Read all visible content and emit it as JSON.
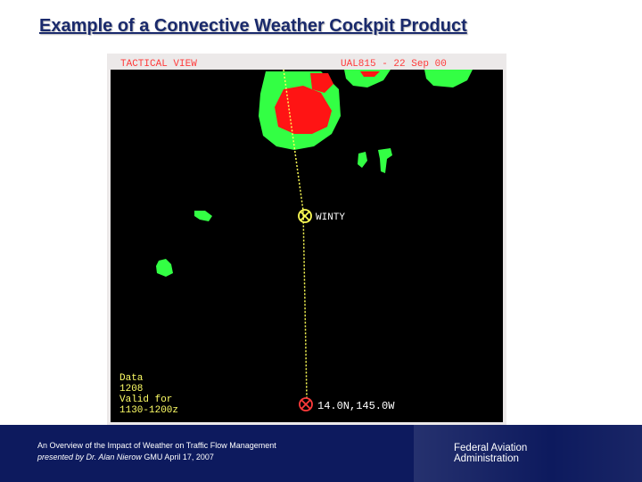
{
  "slide": {
    "title": "Example of a Convective Weather Cockpit Product"
  },
  "radar": {
    "view_label": "TACTICAL VIEW",
    "flight_label": "UAL815 - 22 Sep 00",
    "waypoint_label": "WINTY",
    "position_label": "14.0N,145.0W",
    "data_line1": "Data",
    "data_line2": "1208",
    "data_line3": "Valid for",
    "data_line4": "1130-1200z",
    "colors": {
      "background": "#000000",
      "light_precip": "#33ff44",
      "heavy_precip": "#ff1414",
      "label": "#ff3b3b",
      "route": "#ffff55",
      "data_text": "#ffff66",
      "waypoint_text": "#ffffff"
    }
  },
  "footer": {
    "line1": "An Overview of the Impact of Weather on Traffic Flow Management",
    "line2_prefix": "presented by Dr. Alan Nierow",
    "line2_suffix": " GMU April 17, 2007",
    "org_line1": "Federal Aviation",
    "org_line2": "Administration",
    "colors": {
      "band": "#0d1a5e"
    }
  }
}
